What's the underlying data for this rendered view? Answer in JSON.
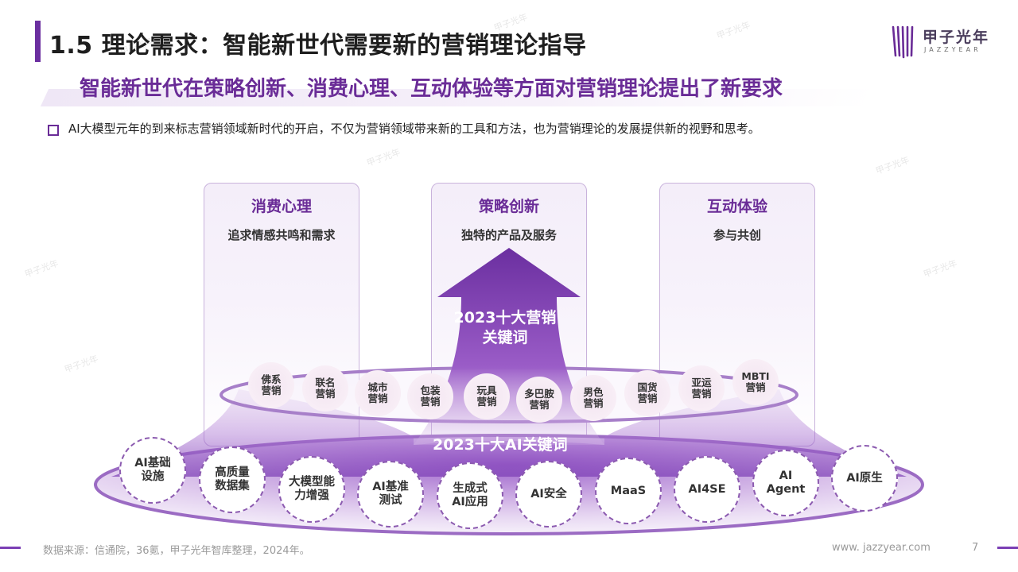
{
  "header": {
    "title": "1.5 理论需求：智能新世代需要新的营销理论指导",
    "subtitle": "智能新世代在策略创新、消费心理、互动体验等方面对营销理论提出了新要求",
    "bullet": "AI大模型元年的到来标志营销领域新时代的开启，不仅为营销领域带来新的工具和方法，也为营销理论的发展提供新的视野和思考。"
  },
  "logo": {
    "cn": "甲子光年",
    "en": "JAZZYEAR"
  },
  "panels": [
    {
      "title": "消费心理",
      "sub": "追求情感共鸣和需求"
    },
    {
      "title": "策略创新",
      "sub": "独特的产品及服务"
    },
    {
      "title": "互动体验",
      "sub": "参与共创"
    }
  ],
  "marketing": {
    "label": "2023十大营销关键词",
    "items": [
      "佛系\n营销",
      "联名\n营销",
      "城市\n营销",
      "包装\n营销",
      "玩具\n营销",
      "多巴胺\n营销",
      "男色\n营销",
      "国货\n营销",
      "亚运\n营销",
      "MBTI\n营销"
    ]
  },
  "ai": {
    "label": "2023十大AI关键词",
    "items": [
      "AI基础\n设施",
      "高质量\n数据集",
      "大模型能\n力增强",
      "AI基准\n测试",
      "生成式\nAI应用",
      "AI安全",
      "MaaS",
      "AI4SE",
      "AI\nAgent",
      "AI原生"
    ]
  },
  "watermark": "甲子光年",
  "footer": {
    "source": "数据来源：信通院，36氪，甲子光年智库整理，2024年。",
    "url": "www. jazzyear.com",
    "page": "7"
  },
  "colors": {
    "accent": "#6a2c97",
    "bubble_border": "#8c5bb0"
  }
}
